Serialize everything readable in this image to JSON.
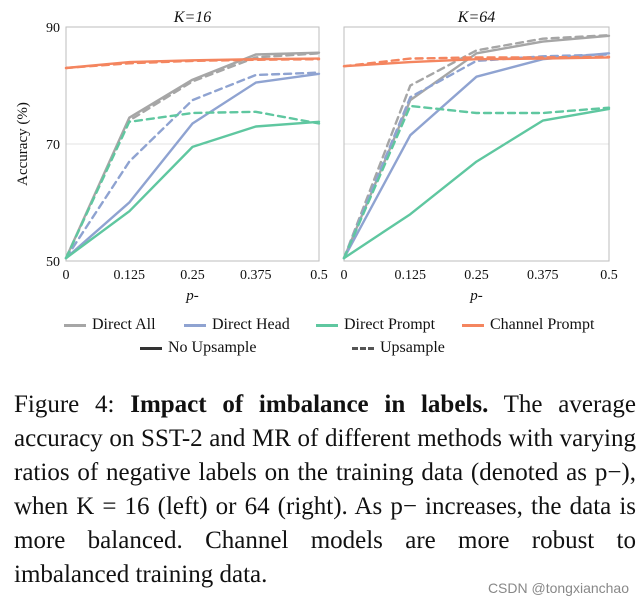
{
  "chart_data": [
    {
      "type": "line",
      "title": "K=16",
      "xlabel": "p-",
      "ylabel": "Accuracy (%)",
      "x": [
        0,
        0.125,
        0.25,
        0.375,
        0.5
      ],
      "xticks": [
        "0",
        "0.125",
        "0.25",
        "0.375",
        "0.5"
      ],
      "yticks": [
        "50",
        "70",
        "90"
      ],
      "ylim": [
        50,
        90
      ],
      "grid": "horizontal",
      "series": [
        {
          "name": "Direct All",
          "style": "solid",
          "color": "#a6a6a6",
          "values": [
            50.5,
            74.5,
            81,
            85.3,
            85.6
          ]
        },
        {
          "name": "Direct All",
          "style": "dashed",
          "color": "#a6a6a6",
          "values": [
            50.5,
            74,
            80.7,
            84.8,
            85.5
          ]
        },
        {
          "name": "Direct Head",
          "style": "solid",
          "color": "#8fa3d1",
          "values": [
            50.5,
            60,
            73.5,
            80.5,
            82
          ]
        },
        {
          "name": "Direct Head",
          "style": "dashed",
          "color": "#8fa3d1",
          "values": [
            50.5,
            67,
            77.5,
            81.8,
            82.2
          ]
        },
        {
          "name": "Direct Prompt",
          "style": "solid",
          "color": "#5fc7a0",
          "values": [
            50.5,
            58.5,
            69.5,
            73,
            73.8
          ]
        },
        {
          "name": "Direct Prompt",
          "style": "dashed",
          "color": "#5fc7a0",
          "values": [
            50.5,
            73.8,
            75.3,
            75.5,
            73.5
          ]
        },
        {
          "name": "Channel Prompt",
          "style": "solid",
          "color": "#f4855f",
          "values": [
            83,
            84,
            84.3,
            84.5,
            84.6
          ]
        },
        {
          "name": "Channel Prompt",
          "style": "dashed",
          "color": "#f4855f",
          "values": [
            83,
            83.8,
            84.2,
            84.4,
            84.5
          ]
        }
      ]
    },
    {
      "type": "line",
      "title": "K=64",
      "xlabel": "p-",
      "ylabel": "",
      "x": [
        0,
        0.125,
        0.25,
        0.375,
        0.5
      ],
      "xticks": [
        "0",
        "0.125",
        "0.25",
        "0.375",
        "0.5"
      ],
      "ylim": [
        50,
        90
      ],
      "grid": "horizontal",
      "series": [
        {
          "name": "Direct All",
          "style": "solid",
          "color": "#a6a6a6",
          "values": [
            50.5,
            77.5,
            85.5,
            87.5,
            88.5
          ]
        },
        {
          "name": "Direct All",
          "style": "dashed",
          "color": "#a6a6a6",
          "values": [
            50.5,
            80,
            86,
            88,
            88.6
          ]
        },
        {
          "name": "Direct Head",
          "style": "solid",
          "color": "#8fa3d1",
          "values": [
            50.5,
            71.5,
            81.5,
            84.5,
            85.5
          ]
        },
        {
          "name": "Direct Head",
          "style": "dashed",
          "color": "#8fa3d1",
          "values": [
            50.5,
            78,
            84.2,
            85,
            85.3
          ]
        },
        {
          "name": "Direct Prompt",
          "style": "solid",
          "color": "#5fc7a0",
          "values": [
            50.5,
            58,
            67,
            74,
            76
          ]
        },
        {
          "name": "Direct Prompt",
          "style": "dashed",
          "color": "#5fc7a0",
          "values": [
            50.5,
            76.5,
            75.3,
            75.3,
            76.2
          ]
        },
        {
          "name": "Channel Prompt",
          "style": "solid",
          "color": "#f4855f",
          "values": [
            83.3,
            84,
            84.5,
            84.6,
            84.8
          ]
        },
        {
          "name": "Channel Prompt",
          "style": "dashed",
          "color": "#f4855f",
          "values": [
            83.3,
            84.6,
            84.8,
            84.8,
            84.9
          ]
        }
      ]
    }
  ],
  "legend": {
    "row1": [
      {
        "label": "Direct All",
        "color": "#a6a6a6"
      },
      {
        "label": "Direct Head",
        "color": "#8fa3d1"
      },
      {
        "label": "Direct Prompt",
        "color": "#5fc7a0"
      },
      {
        "label": "Channel Prompt",
        "color": "#f4855f"
      }
    ],
    "row2": [
      {
        "label": "No Upsample",
        "style": "solid",
        "color": "#333333"
      },
      {
        "label": "Upsample",
        "style": "dashed",
        "color": "#555555"
      }
    ]
  },
  "caption": {
    "prefix": "Figure 4: ",
    "bold": "Impact of imbalance in labels.",
    "body": " The average accuracy on SST-2 and MR of different methods with varying ratios of negative labels on the training data (denoted as p−), when K = 16 (left) or 64 (right). As p− increases, the data is more balanced. Channel models are more robust to imbalanced training data."
  },
  "watermark": "CSDN @tongxianchao"
}
